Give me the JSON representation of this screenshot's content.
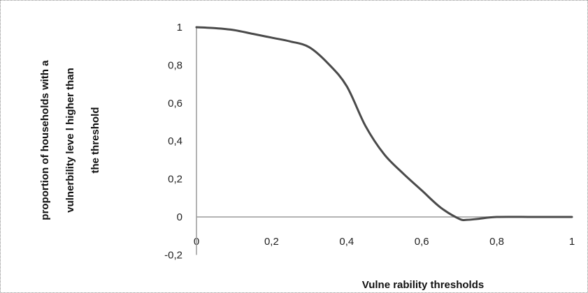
{
  "chart_data": {
    "type": "line",
    "title": "",
    "xlabel": "Vulne rability thresholds",
    "ylabel_lines": [
      "proportion of households with a",
      "vulnerbility leve l higher than",
      "the threshold"
    ],
    "xlim": [
      0,
      1
    ],
    "ylim": [
      -0.2,
      1
    ],
    "x_tick_labels": [
      "0",
      "0,2",
      "0,4",
      "0,6",
      "0,8",
      "1"
    ],
    "x_tick_values": [
      0,
      0.2,
      0.4,
      0.6,
      0.8,
      1
    ],
    "y_tick_labels": [
      "-0,2",
      "0",
      "0,2",
      "0,4",
      "0,6",
      "0,8",
      "1"
    ],
    "y_tick_values": [
      -0.2,
      0,
      0.2,
      0.4,
      0.6,
      0.8,
      1
    ],
    "grid": false,
    "line_color": "#4a4a4a",
    "series": [
      {
        "x": [
          0,
          0.05,
          0.1,
          0.15,
          0.2,
          0.25,
          0.3,
          0.35,
          0.4,
          0.45,
          0.5,
          0.55,
          0.6,
          0.65,
          0.7,
          0.72,
          0.75,
          0.8,
          0.9,
          1
        ],
        "y": [
          1,
          0.995,
          0.985,
          0.965,
          0.945,
          0.925,
          0.895,
          0.81,
          0.69,
          0.48,
          0.33,
          0.23,
          0.14,
          0.05,
          -0.01,
          -0.015,
          -0.01,
          0,
          0,
          0
        ]
      }
    ]
  }
}
